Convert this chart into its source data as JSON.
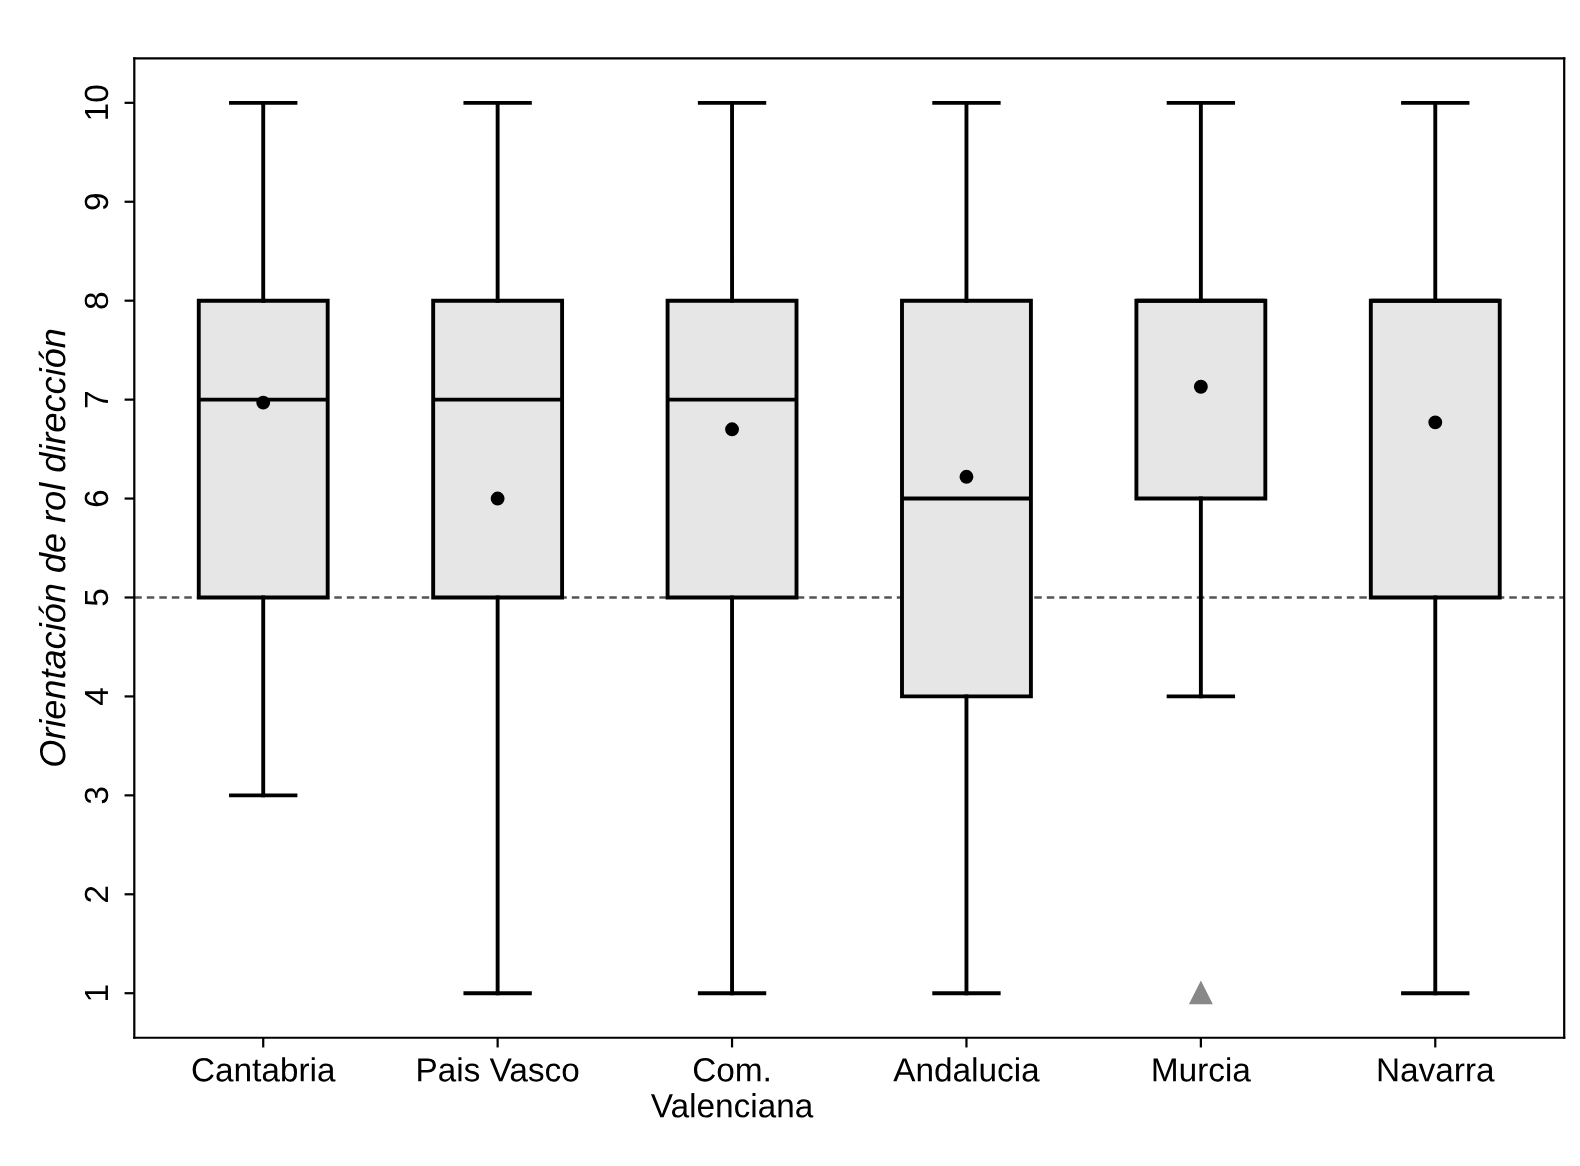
{
  "chart_data": {
    "type": "box",
    "ylabel": "Orientación de rol dirección",
    "categories": [
      "Cantabria",
      "Pais Vasco",
      "Com.\nValenciana",
      "Andalucia",
      "Murcia",
      "Navarra"
    ],
    "boxes": [
      {
        "low": 3,
        "q1": 5,
        "median": 7,
        "q3": 8,
        "high": 10,
        "mean": 6.97
      },
      {
        "low": 1,
        "q1": 5,
        "median": 7,
        "q3": 8,
        "high": 10,
        "mean": 6.0
      },
      {
        "low": 1,
        "q1": 5,
        "median": 7,
        "q3": 8,
        "high": 10,
        "mean": 6.7
      },
      {
        "low": 1,
        "q1": 4,
        "median": 6,
        "q3": 8,
        "high": 10,
        "mean": 6.22
      },
      {
        "low": 4,
        "q1": 6,
        "median": 8,
        "q3": 8,
        "high": 10,
        "mean": 7.13,
        "outliers": [
          1
        ]
      },
      {
        "low": 1,
        "q1": 5,
        "median": 8,
        "q3": 8,
        "high": 10,
        "mean": 6.77
      }
    ],
    "color": "#e6e6e6",
    "ylim": [
      0.55,
      10.45
    ],
    "yticks": [
      1,
      2,
      3,
      4,
      5,
      6,
      7,
      8,
      9,
      10
    ],
    "ref_lines": [
      {
        "axis": "y",
        "value": 5,
        "line_style": "dashed",
        "color": "#555555"
      }
    ],
    "grid": false
  }
}
